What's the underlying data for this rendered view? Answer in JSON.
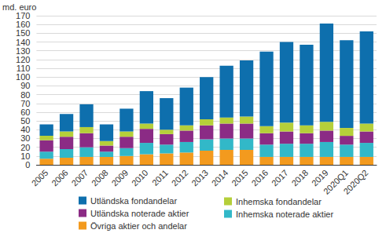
{
  "chart_data": {
    "type": "bar",
    "stacked": true,
    "y_label": "md. euro",
    "categories": [
      "2005",
      "2006",
      "2007",
      "2008",
      "2009",
      "2010",
      "2011",
      "2012",
      "2013",
      "2014",
      "2015",
      "2016",
      "2017",
      "2018",
      "2019",
      "2020Q1",
      "2020Q2"
    ],
    "series": [
      {
        "name": "Övriga aktier och andelar",
        "color": "#f39a1e",
        "values": [
          7,
          8,
          9,
          9,
          10,
          12,
          13,
          14,
          16,
          17,
          17,
          9,
          9,
          9,
          9,
          9,
          9
        ]
      },
      {
        "name": "Inhemska noterade aktier",
        "color": "#32b8c8",
        "values": [
          8,
          10,
          11,
          6,
          9,
          13,
          10,
          12,
          13,
          13,
          13,
          14,
          15,
          15,
          17,
          14,
          16
        ]
      },
      {
        "name": "Utländska noterade aktier",
        "color": "#8b2b85",
        "values": [
          13,
          14,
          16,
          7,
          13,
          16,
          12,
          13,
          16,
          17,
          17,
          13,
          14,
          12,
          13,
          10,
          13
        ]
      },
      {
        "name": "Inhemska fondandelar",
        "color": "#b5cf3a",
        "values": [
          5,
          6,
          7,
          5,
          6,
          6,
          5,
          6,
          7,
          7,
          8,
          8,
          10,
          9,
          10,
          9,
          9
        ]
      },
      {
        "name": "Utländska fondandelar",
        "color": "#0e6fad",
        "values": [
          13,
          20,
          26,
          19,
          26,
          37,
          36,
          43,
          48,
          59,
          64,
          85,
          92,
          92,
          112,
          100,
          105
        ]
      }
    ],
    "ylim": [
      0,
      170
    ],
    "yticks": [
      0,
      10,
      20,
      30,
      40,
      50,
      60,
      70,
      80,
      90,
      100,
      110,
      120,
      130,
      140,
      150,
      160,
      170
    ],
    "grid": true,
    "legend": "bottom"
  }
}
